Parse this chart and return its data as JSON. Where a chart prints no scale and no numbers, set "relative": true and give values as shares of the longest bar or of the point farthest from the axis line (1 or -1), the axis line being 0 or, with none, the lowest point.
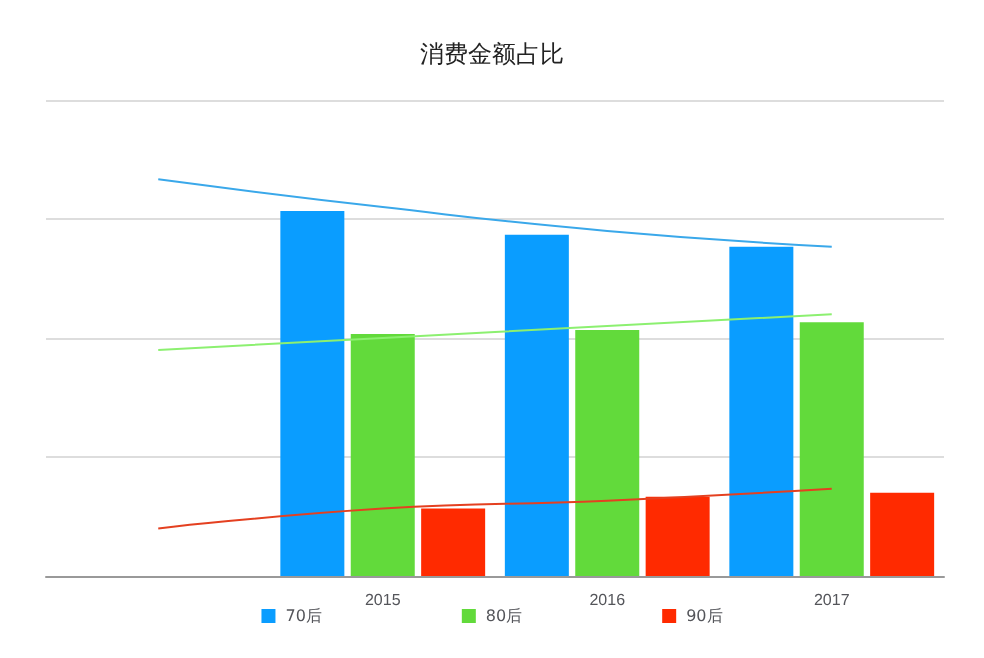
{
  "chart_data": {
    "type": "bar",
    "title": "消费金额占比",
    "relative": true,
    "categories": [
      null,
      "2015",
      "2016",
      "2017"
    ],
    "series": [
      {
        "name": "70后",
        "color": "#0a9dff",
        "values": [
          null,
          0.92,
          0.86,
          0.83
        ]
      },
      {
        "name": "80后",
        "color": "#62da3b",
        "values": [
          null,
          0.61,
          0.62,
          0.64
        ]
      },
      {
        "name": "90后",
        "color": "#ff2a00",
        "values": [
          null,
          0.17,
          0.2,
          0.21
        ]
      },
      {
        "type": "line",
        "color": "#3aa8ea",
        "values": [
          1,
          0.93,
          0.87,
          0.83
        ]
      },
      {
        "type": "line",
        "color": "#8cf070",
        "values": [
          0.57,
          0.6,
          0.63,
          0.66
        ]
      },
      {
        "type": "line",
        "color": "#e44020",
        "values": [
          0.12,
          0.17,
          0.19,
          0.22
        ]
      }
    ],
    "grid": "y",
    "legend": "bottom",
    "marker": "none"
  }
}
